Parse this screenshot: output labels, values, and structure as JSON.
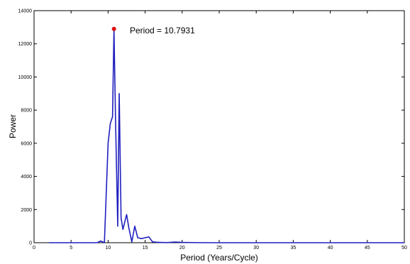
{
  "chart_data": {
    "type": "line",
    "xlabel": "Period (Years/Cycle)",
    "ylabel": "Power",
    "xlim": [
      0,
      50
    ],
    "ylim": [
      0,
      14000
    ],
    "x_ticks": [
      0,
      5,
      10,
      15,
      20,
      25,
      30,
      35,
      40,
      45,
      50
    ],
    "y_ticks": [
      0,
      2000,
      4000,
      6000,
      8000,
      10000,
      12000,
      14000
    ],
    "grid": false,
    "series_color": "#1f1fbf",
    "marker_color": "#e01010",
    "x": [
      2,
      4,
      6,
      8.5,
      9,
      9.5,
      10,
      10.3,
      10.6,
      10.7931,
      11.0,
      11.3,
      11.5,
      11.75,
      12.0,
      12.5,
      12.8,
      13.2,
      13.6,
      14.0,
      14.5,
      15.0,
      15.5,
      16.0,
      16.5,
      17.0,
      18.0,
      19.0,
      20.0,
      22.0,
      25.0,
      30.0,
      35.0,
      40.0,
      45.0,
      50.0
    ],
    "values": [
      0,
      0,
      0,
      0,
      100,
      0,
      6000,
      7200,
      7600,
      12900,
      7500,
      1000,
      9000,
      1500,
      800,
      1700,
      900,
      50,
      1000,
      300,
      250,
      300,
      350,
      50,
      30,
      20,
      10,
      40,
      20,
      5,
      0,
      0,
      0,
      0,
      0,
      0
    ],
    "peak": {
      "x": 10.7931,
      "y": 12900
    },
    "annotation": "Period = 10.7931"
  }
}
